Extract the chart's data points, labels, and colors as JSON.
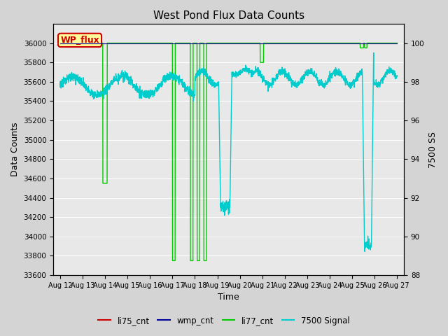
{
  "title": "West Pond Flux Data Counts",
  "xlabel": "Time",
  "ylabel_left": "Data Counts",
  "ylabel_right": "7500 SS",
  "ylim_left": [
    33600,
    36200
  ],
  "ylim_right": [
    88,
    101
  ],
  "yticks_left": [
    33600,
    33800,
    34000,
    34200,
    34400,
    34600,
    34800,
    35000,
    35200,
    35400,
    35600,
    35800,
    36000
  ],
  "yticks_right": [
    88,
    90,
    92,
    94,
    96,
    98,
    100
  ],
  "xtick_labels": [
    "Aug 12",
    "Aug 13",
    "Aug 14",
    "Aug 15",
    "Aug 16",
    "Aug 17",
    "Aug 18",
    "Aug 19",
    "Aug 20",
    "Aug 21",
    "Aug 22",
    "Aug 23",
    "Aug 24",
    "Aug 25",
    "Aug 26",
    "Aug 27"
  ],
  "fig_bg": "#d4d4d4",
  "plot_bg": "#e8e8e8",
  "grid_color": "#ffffff",
  "legend_labels": [
    "li75_cnt",
    "wmp_cnt",
    "li77_cnt",
    "7500 Signal"
  ],
  "li75_color": "#cc0000",
  "wmp_color": "#000099",
  "li77_color": "#00cc00",
  "signal_color": "#00cccc",
  "annotation_text": "WP_flux",
  "annotation_fg": "#cc0000",
  "annotation_bg": "#ffff99",
  "annotation_border": "#cc0000"
}
